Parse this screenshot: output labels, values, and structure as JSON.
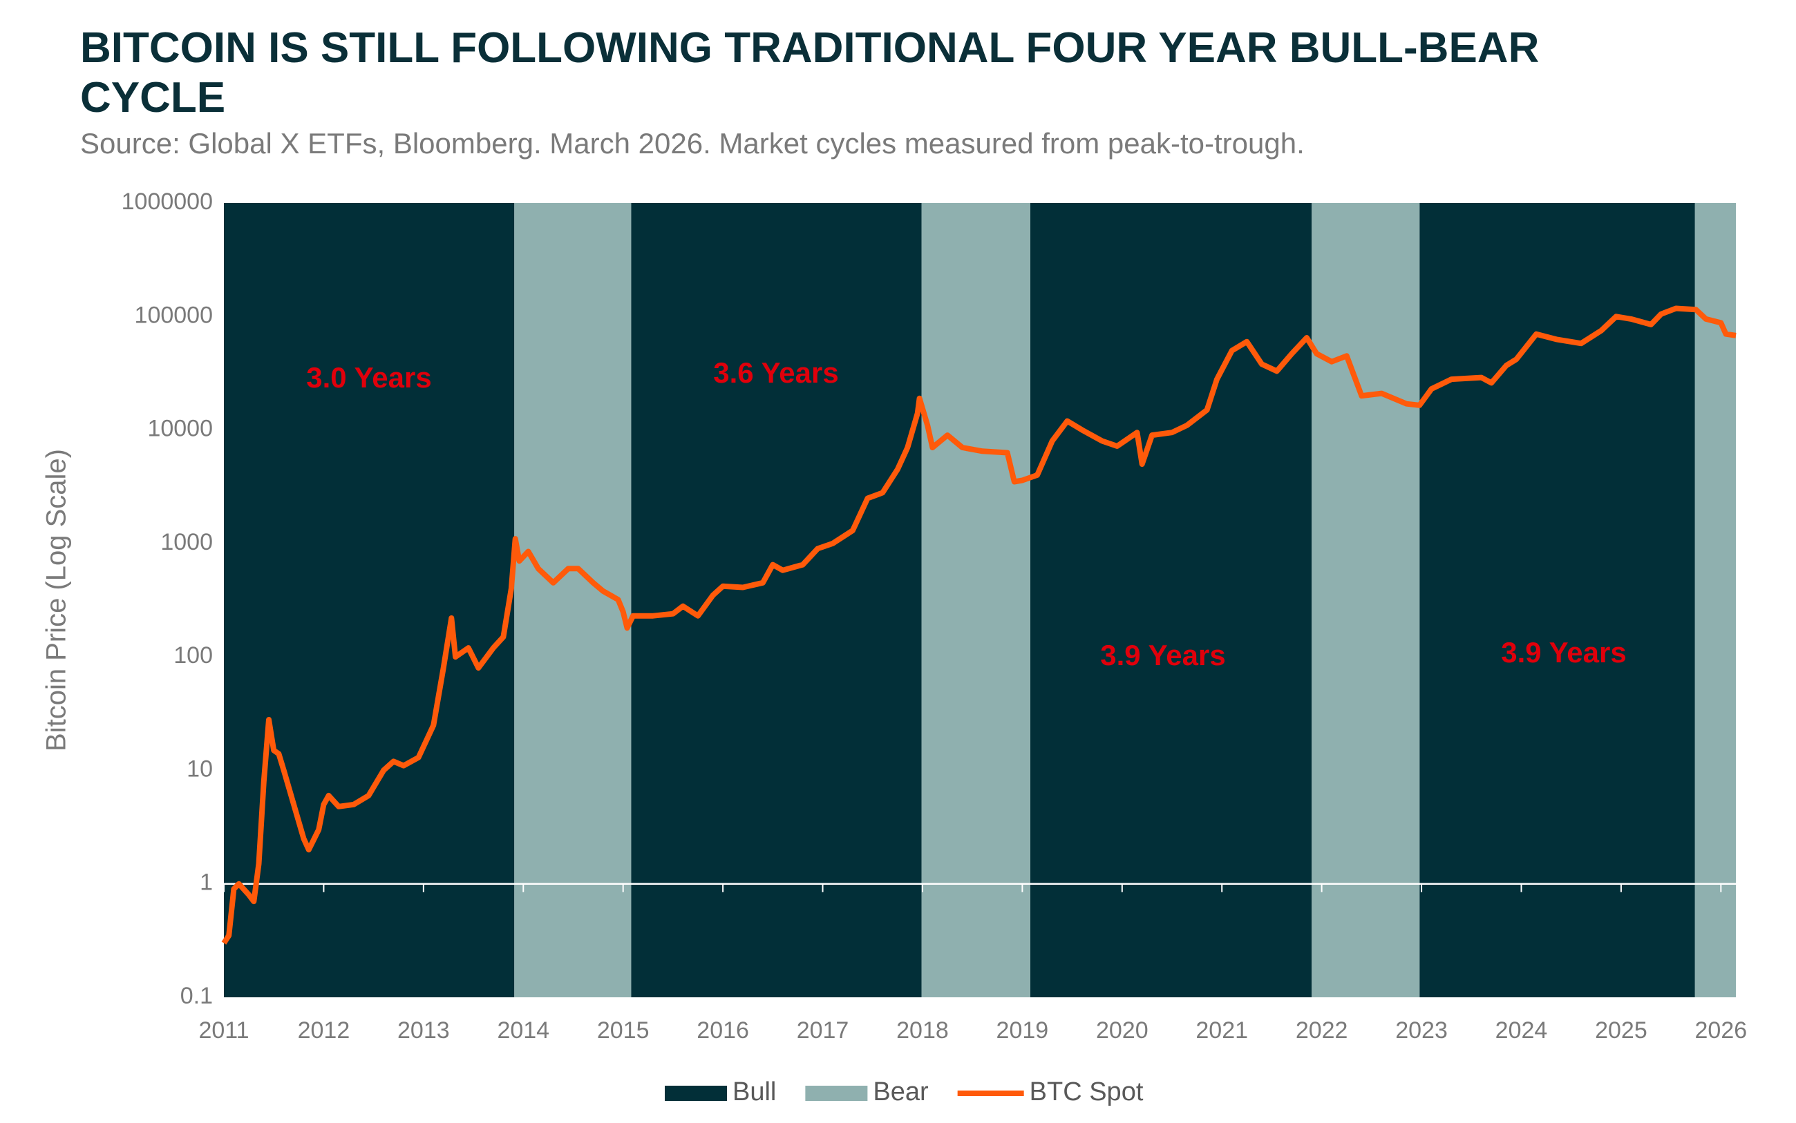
{
  "chart_data": {
    "type": "line",
    "title": "BITCOIN IS STILL FOLLOWING TRADITIONAL FOUR YEAR BULL-BEAR CYCLE",
    "subtitle": "Source: Global X ETFs, Bloomberg. March 2026. Market cycles measured from peak-to-trough.",
    "y_label": "Bitcoin Price (Log Scale)",
    "log_scale": true,
    "ylim": [
      0.1,
      1000000
    ],
    "yticks": [
      0.1,
      1,
      10,
      100,
      1000,
      10000,
      100000,
      1000000
    ],
    "xlim": [
      2011,
      2026.15
    ],
    "xticks": [
      2011,
      2012,
      2013,
      2014,
      2015,
      2016,
      2017,
      2018,
      2019,
      2020,
      2021,
      2022,
      2023,
      2024,
      2025,
      2026
    ],
    "x_axis_crossing": 1,
    "legend": "bottom",
    "bands": [
      {
        "name": "Bull",
        "color": "#022f38",
        "ranges": [
          [
            2011,
            2013.91
          ],
          [
            2015.08,
            2017.99
          ],
          [
            2019.08,
            2021.9
          ],
          [
            2022.98,
            2025.74
          ]
        ]
      },
      {
        "name": "Bear",
        "color": "#8fb0af",
        "ranges": [
          [
            2013.91,
            2015.08
          ],
          [
            2017.99,
            2019.08
          ],
          [
            2021.9,
            2022.98
          ],
          [
            2025.74,
            2026.15
          ]
        ]
      }
    ],
    "annotations": [
      "3.0 Years",
      "3.6 Years",
      "3.9 Years",
      "3.9 Years"
    ],
    "annotation_color": "#e0000b",
    "series": [
      {
        "name": "BTC Spot",
        "color": "#ff5a0a",
        "x": [
          2011.0,
          2011.05,
          2011.1,
          2011.15,
          2011.25,
          2011.3,
          2011.35,
          2011.4,
          2011.45,
          2011.5,
          2011.55,
          2011.6,
          2011.7,
          2011.8,
          2011.85,
          2011.95,
          2012.0,
          2012.05,
          2012.15,
          2012.3,
          2012.45,
          2012.6,
          2012.7,
          2012.8,
          2012.95,
          2013.1,
          2013.2,
          2013.28,
          2013.32,
          2013.45,
          2013.55,
          2013.7,
          2013.8,
          2013.88,
          2013.92,
          2013.96,
          2014.05,
          2014.15,
          2014.3,
          2014.45,
          2014.55,
          2014.7,
          2014.8,
          2014.95,
          2015.0,
          2015.04,
          2015.1,
          2015.3,
          2015.5,
          2015.6,
          2015.75,
          2015.9,
          2016.0,
          2016.2,
          2016.4,
          2016.5,
          2016.6,
          2016.8,
          2016.95,
          2017.1,
          2017.3,
          2017.45,
          2017.6,
          2017.75,
          2017.85,
          2017.95,
          2017.97,
          2018.05,
          2018.1,
          2018.25,
          2018.4,
          2018.6,
          2018.85,
          2018.92,
          2019.0,
          2019.15,
          2019.3,
          2019.45,
          2019.6,
          2019.8,
          2019.95,
          2020.15,
          2020.2,
          2020.3,
          2020.5,
          2020.65,
          2020.85,
          2020.95,
          2021.1,
          2021.25,
          2021.4,
          2021.55,
          2021.7,
          2021.85,
          2021.95,
          2022.1,
          2022.25,
          2022.4,
          2022.6,
          2022.85,
          2022.98,
          2023.1,
          2023.3,
          2023.6,
          2023.7,
          2023.85,
          2023.95,
          2024.15,
          2024.35,
          2024.6,
          2024.8,
          2024.95,
          2025.1,
          2025.3,
          2025.4,
          2025.55,
          2025.75,
          2025.85,
          2026.0,
          2026.05,
          2026.15
        ],
        "values": [
          0.3,
          0.35,
          0.9,
          1.0,
          0.8,
          0.7,
          1.5,
          8,
          28,
          15,
          14,
          10,
          5,
          2.5,
          2.0,
          3,
          5,
          6,
          4.8,
          5,
          6,
          10,
          12,
          11,
          13,
          25,
          80,
          220,
          100,
          120,
          80,
          120,
          150,
          400,
          1100,
          700,
          850,
          600,
          450,
          600,
          600,
          450,
          380,
          320,
          250,
          180,
          230,
          230,
          240,
          280,
          230,
          350,
          420,
          410,
          450,
          650,
          580,
          650,
          900,
          1000,
          1300,
          2500,
          2800,
          4500,
          7000,
          14000,
          19000,
          11000,
          7000,
          9000,
          7000,
          6500,
          6300,
          3500,
          3600,
          4000,
          8000,
          12000,
          10000,
          8000,
          7200,
          9500,
          5000,
          9000,
          9500,
          11000,
          15000,
          28000,
          50000,
          60000,
          38000,
          33000,
          47000,
          65000,
          47000,
          40000,
          45000,
          20000,
          21000,
          17000,
          16500,
          23000,
          28000,
          29000,
          26000,
          37000,
          42000,
          70000,
          63000,
          58000,
          75000,
          100000,
          95000,
          85000,
          105000,
          118000,
          115000,
          95000,
          88000,
          70000,
          68000
        ]
      }
    ]
  }
}
